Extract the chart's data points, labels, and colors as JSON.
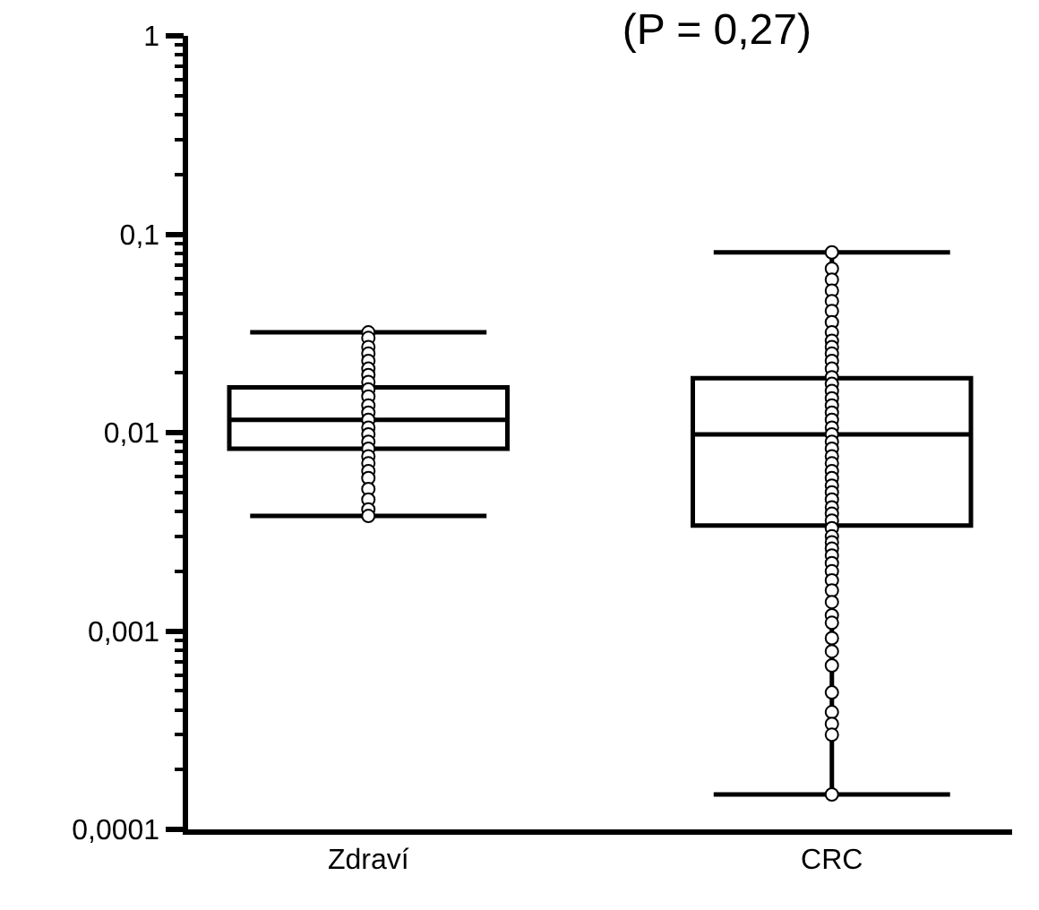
{
  "chart_data": {
    "type": "box",
    "title": "(P = 0,27)",
    "categories": [
      "Zdraví",
      "CRC"
    ],
    "boxes": [
      {
        "low": 0.0038,
        "q1": 0.0083,
        "median": 0.0116,
        "q3": 0.0169,
        "high": 0.032
      },
      {
        "low": 0.00015,
        "q1": 0.0034,
        "median": 0.0098,
        "q3": 0.0188,
        "high": 0.081
      }
    ],
    "series": [
      {
        "type": "scatter",
        "color": "#ffffff",
        "x": [
          "Zdraví",
          "Zdraví",
          "Zdraví",
          "Zdraví",
          "Zdraví",
          "Zdraví",
          "Zdraví",
          "Zdraví",
          "Zdraví",
          "Zdraví",
          "Zdraví",
          "Zdraví",
          "Zdraví",
          "Zdraví",
          "Zdraví",
          "Zdraví",
          "Zdraví",
          "Zdraví",
          "Zdraví",
          "Zdraví",
          "Zdraví",
          "Zdraví",
          "Zdraví",
          "Zdraví",
          "Zdraví",
          "CRC",
          "CRC",
          "CRC",
          "CRC",
          "CRC",
          "CRC",
          "CRC",
          "CRC",
          "CRC",
          "CRC",
          "CRC",
          "CRC",
          "CRC",
          "CRC",
          "CRC",
          "CRC",
          "CRC",
          "CRC",
          "CRC",
          "CRC",
          "CRC",
          "CRC",
          "CRC",
          "CRC",
          "CRC",
          "CRC",
          "CRC",
          "CRC",
          "CRC",
          "CRC",
          "CRC",
          "CRC",
          "CRC",
          "CRC",
          "CRC",
          "CRC",
          "CRC",
          "CRC",
          "CRC",
          "CRC",
          "CRC",
          "CRC",
          "CRC",
          "CRC",
          "CRC",
          "CRC",
          "CRC",
          "CRC",
          "CRC",
          "CRC",
          "CRC",
          "CRC",
          "CRC",
          "CRC"
        ],
        "values": [
          0.032,
          0.03,
          0.027,
          0.025,
          0.023,
          0.021,
          0.0195,
          0.018,
          0.0165,
          0.0152,
          0.0137,
          0.0126,
          0.0116,
          0.0106,
          0.0098,
          0.009,
          0.0083,
          0.0076,
          0.007,
          0.0064,
          0.0059,
          0.0052,
          0.0046,
          0.0041,
          0.0038,
          0.081,
          0.067,
          0.059,
          0.052,
          0.046,
          0.041,
          0.036,
          0.032,
          0.029,
          0.027,
          0.025,
          0.023,
          0.021,
          0.019,
          0.0176,
          0.0162,
          0.0149,
          0.0137,
          0.0126,
          0.0116,
          0.0106,
          0.0098,
          0.009,
          0.0083,
          0.0076,
          0.007,
          0.0064,
          0.0059,
          0.0054,
          0.005,
          0.0046,
          0.0042,
          0.0039,
          0.0036,
          0.0033,
          0.003,
          0.0028,
          0.0026,
          0.0024,
          0.0022,
          0.002,
          0.0018,
          0.0016,
          0.0014,
          0.0012,
          0.0011,
          0.00092,
          0.00079,
          0.00067,
          0.00049,
          0.00039,
          0.00034,
          0.0003,
          0.00015
        ]
      }
    ],
    "ylim": [
      0.0001,
      1
    ],
    "yticks": [
      {
        "value": 0.0001,
        "label": "0,0001"
      },
      {
        "value": 0.001,
        "label": "0,001"
      },
      {
        "value": 0.01,
        "label": "0,01"
      },
      {
        "value": 0.1,
        "label": "0,1"
      },
      1
    ],
    "log": true,
    "grid": false,
    "marker": "circle"
  }
}
